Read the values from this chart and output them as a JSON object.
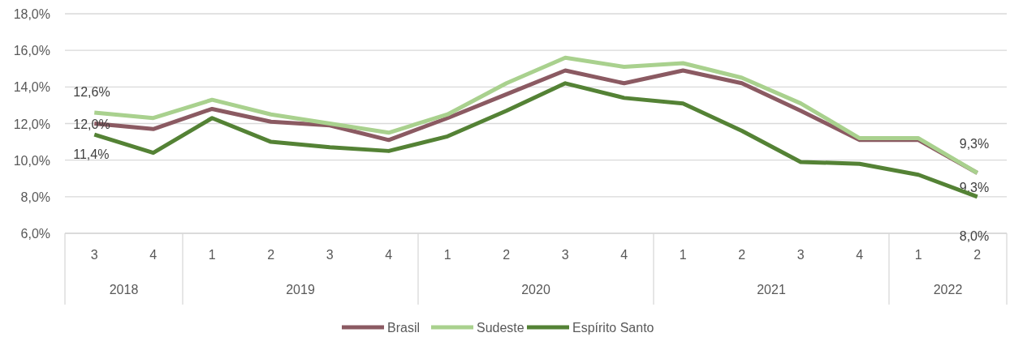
{
  "chart_data": {
    "type": "line",
    "categories": [
      "3",
      "4",
      "1",
      "2",
      "3",
      "4",
      "1",
      "2",
      "3",
      "4",
      "1",
      "2",
      "3",
      "4",
      "1",
      "2"
    ],
    "series": [
      {
        "name": "Brasil",
        "color": "#8b5a62",
        "values": [
          12.0,
          11.7,
          12.8,
          12.1,
          11.9,
          11.1,
          12.3,
          13.6,
          14.9,
          14.2,
          14.9,
          14.2,
          12.7,
          11.1,
          11.1,
          9.3
        ],
        "value_labels": [
          "12,0%",
          null,
          null,
          null,
          null,
          null,
          null,
          null,
          null,
          null,
          null,
          null,
          null,
          null,
          null,
          "9,3%"
        ]
      },
      {
        "name": "Sudeste",
        "color": "#a9d18e",
        "values": [
          12.6,
          12.3,
          13.3,
          12.5,
          12.0,
          11.5,
          12.5,
          14.2,
          15.6,
          15.1,
          15.3,
          14.5,
          13.1,
          11.2,
          11.2,
          9.3
        ],
        "value_labels": [
          "12,6%",
          null,
          null,
          null,
          null,
          null,
          null,
          null,
          null,
          null,
          null,
          null,
          null,
          null,
          null,
          "9,3%"
        ]
      },
      {
        "name": "Espírito Santo",
        "color": "#548235",
        "values": [
          11.4,
          10.4,
          12.3,
          11.0,
          10.7,
          10.5,
          11.3,
          12.7,
          14.2,
          13.4,
          13.1,
          11.6,
          9.9,
          9.8,
          9.2,
          8.0
        ],
        "value_labels": [
          "11,4%",
          null,
          null,
          null,
          null,
          null,
          null,
          null,
          null,
          null,
          null,
          null,
          null,
          null,
          null,
          "8,0%"
        ]
      }
    ],
    "annotations": [
      "2018",
      "2019",
      "2020",
      "2021",
      "2022"
    ],
    "ylim": [
      6,
      18
    ],
    "yticks": [
      {
        "value": 6,
        "label": "6,0%"
      },
      {
        "value": 8,
        "label": "8,0%"
      },
      {
        "value": 10,
        "label": "10,0%"
      },
      {
        "value": 12,
        "label": "12,0%"
      },
      {
        "value": 14,
        "label": "14,0%"
      },
      {
        "value": 16,
        "label": "16,0%"
      },
      {
        "value": 18,
        "label": "18,0%"
      }
    ],
    "grid": "y",
    "legend": "bottom",
    "marker": "none",
    "line_style": "solid"
  }
}
